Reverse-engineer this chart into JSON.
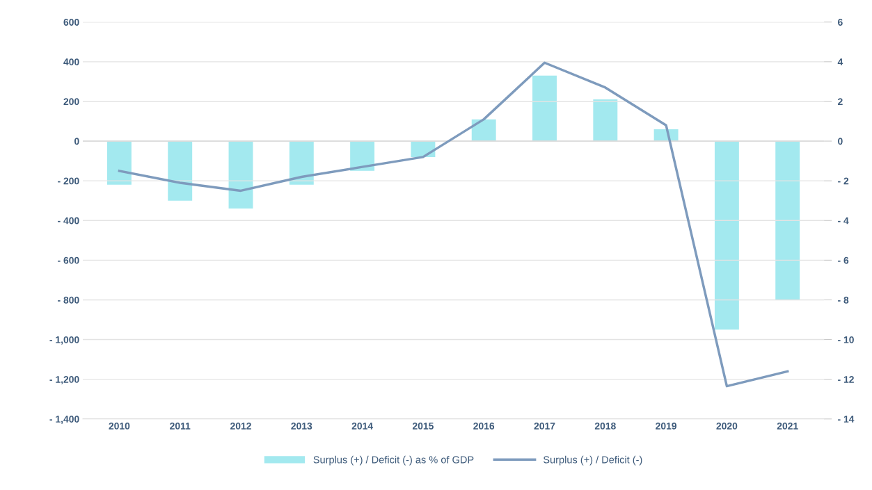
{
  "chart_data": {
    "type": "bar",
    "categories": [
      "2010",
      "2011",
      "2012",
      "2013",
      "2014",
      "2015",
      "2016",
      "2017",
      "2018",
      "2019",
      "2020",
      "2021"
    ],
    "series": [
      {
        "name": "Surplus (+) / Deficit (-) as % of GDP",
        "axis": "y2",
        "color": "#a3e9ef",
        "values": [
          -2.2,
          -3.0,
          -3.4,
          -2.2,
          -1.5,
          -0.8,
          1.1,
          3.3,
          2.1,
          0.6,
          -9.5,
          -8.0
        ]
      },
      {
        "name": "Surplus (+) / Deficit (-)",
        "type": "line",
        "axis": "y",
        "color": "#7e9bbd",
        "values": [
          -150,
          -210,
          -250,
          -180,
          -130,
          -80,
          110,
          395,
          270,
          80,
          -1235,
          -1160
        ]
      }
    ],
    "ylim": [
      -1400,
      600
    ],
    "yticks": [
      {
        "value": -1400,
        "label": "- 1,400"
      },
      {
        "value": -1200,
        "label": "- 1,200"
      },
      {
        "value": -1000,
        "label": "- 1,000"
      },
      {
        "value": -800,
        "label": "- 800"
      },
      {
        "value": -600,
        "label": "- 600"
      },
      {
        "value": -400,
        "label": "- 400"
      },
      {
        "value": -200,
        "label": "- 200"
      },
      0,
      200,
      400,
      600
    ],
    "y2lim": [
      -14,
      6
    ],
    "y2ticks": [
      {
        "value": -14,
        "label": "- 14"
      },
      {
        "value": -12,
        "label": "- 12"
      },
      {
        "value": -10,
        "label": "- 10"
      },
      {
        "value": -8,
        "label": "- 8"
      },
      {
        "value": -6,
        "label": "- 6"
      },
      {
        "value": -4,
        "label": "- 4"
      },
      {
        "value": -2,
        "label": "- 2"
      },
      0,
      2,
      4,
      6
    ],
    "grid": "y",
    "legend": "bottom",
    "marker": "none",
    "line_style": "solid"
  }
}
